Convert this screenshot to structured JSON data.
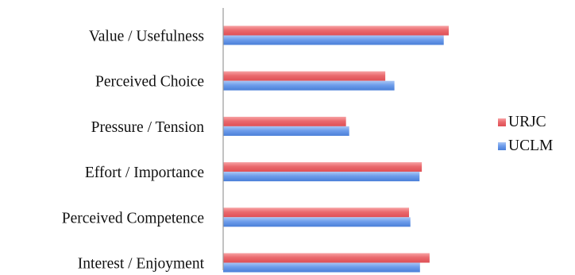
{
  "chart_data": {
    "type": "bar",
    "orientation": "horizontal",
    "categories": [
      "Value / Usefulness",
      "Perceived Choice",
      "Pressure / Tension",
      "Effort / Importance",
      "Perceived Competence",
      "Interest / Enjoyment"
    ],
    "series": [
      {
        "name": "URJC",
        "color": "#e8575c",
        "values": [
          4.94,
          3.55,
          2.69,
          4.35,
          4.07,
          4.52
        ]
      },
      {
        "name": "UCLM",
        "color": "#4a86e0",
        "values": [
          4.83,
          3.75,
          2.76,
          4.3,
          4.1,
          4.31
        ]
      }
    ],
    "xlim": [
      0,
      6
    ],
    "grid": false,
    "legend_position": "right"
  }
}
